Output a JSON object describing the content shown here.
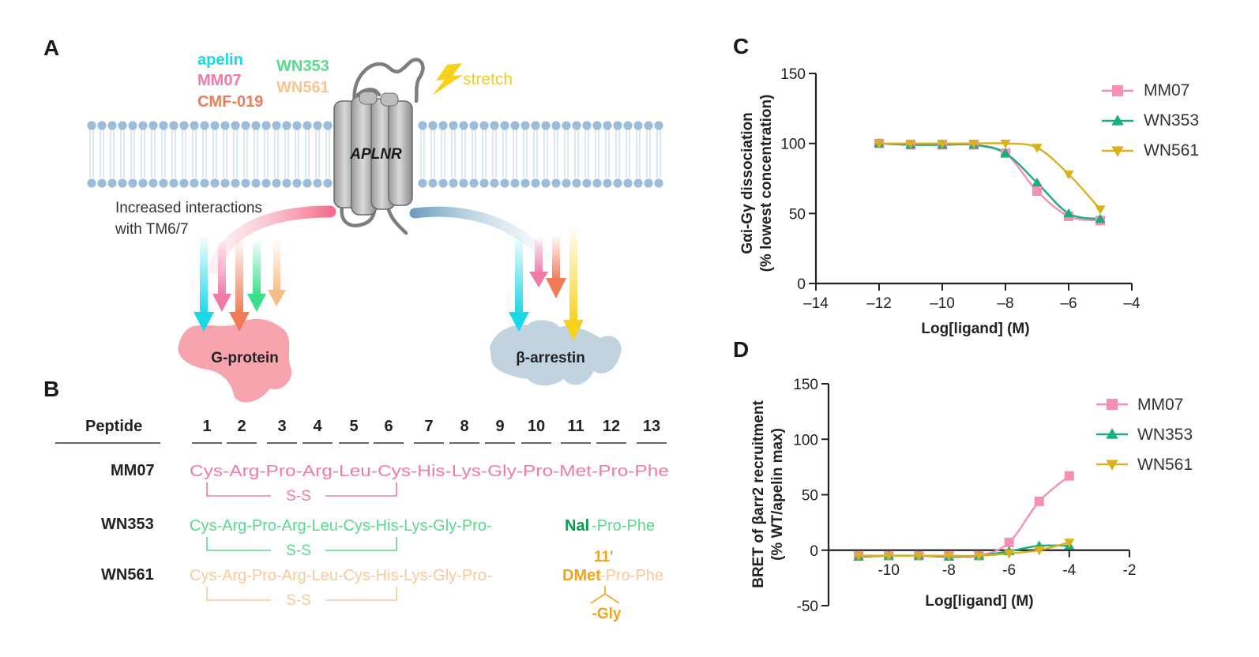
{
  "panels": {
    "A": "A",
    "B": "B",
    "C": "C",
    "D": "D"
  },
  "colors": {
    "apelin": "#19d8e8",
    "MM07": "#f07aa8",
    "CMF019": "#f07b55",
    "WN353": "#4fdc96",
    "WN561": "#f9c99a",
    "stretch": "#f7d21c",
    "accent_dark_green": "#0a9a55",
    "accent_orange": "#f2a31c"
  },
  "panelA": {
    "ligands_left": [
      "apelin",
      "MM07",
      "CMF-019"
    ],
    "ligands_right": [
      "WN353",
      "WN561"
    ],
    "stretch": "stretch",
    "receptor": "APLNR",
    "note_line1": "Increased interactions",
    "note_line2": "with TM6/7",
    "gprotein": "G-protein",
    "barrestin": "β-arrestin"
  },
  "panelB": {
    "header": "Peptide",
    "positions": [
      "1",
      "2",
      "3",
      "4",
      "5",
      "6",
      "7",
      "8",
      "9",
      "10",
      "11",
      "12",
      "13"
    ],
    "disulfide": "S-S",
    "rows": [
      {
        "name": "MM07",
        "seq_a": "Cys-Arg-Pro-Arg-Leu-Cys-His-Lys-Gly-Pro-Met-Pro-Phe",
        "seq_b": "",
        "seq_c": ""
      },
      {
        "name": "WN353",
        "seq_a": "Cys-Arg-Pro-Arg-Leu-Cys-His-Lys-Gly-Pro-",
        "seq_b": "Nal",
        "seq_c": "-Pro-Phe"
      },
      {
        "name": "WN561",
        "seq_a": "Cys-Arg-Pro-Arg-Leu-Cys-His-Lys-Gly-Pro-",
        "seq_b": "DMet",
        "seq_c": "-Pro-Phe"
      }
    ],
    "wn561_mod_top": "11'",
    "wn561_mod_bottom": "-Gly"
  },
  "chart_data": [
    {
      "type": "line",
      "ylabel_line1": "Gαi-Gγ dissociation",
      "ylabel_line2": "(% lowest concentration)",
      "xlabel": "Log[ligand] (M)",
      "xlim": [
        -14,
        -4
      ],
      "ylim": [
        0,
        150
      ],
      "xticks": [
        -14,
        -12,
        -10,
        -8,
        -6,
        -4
      ],
      "xtick_labels": [
        "–14",
        "–12",
        "–10",
        "–8",
        "–6",
        "–4"
      ],
      "yticks": [
        0,
        50,
        100,
        150
      ],
      "legend": "top-right",
      "series": [
        {
          "name": "MM07",
          "marker": "square",
          "color": "#f48fb5",
          "x": [
            -12,
            -11,
            -10,
            -9,
            -8,
            -7,
            -6,
            -5
          ],
          "y": [
            100,
            99,
            99,
            99,
            93,
            66,
            48,
            45
          ]
        },
        {
          "name": "WN353",
          "marker": "triangle-up",
          "color": "#17b07a",
          "x": [
            -12,
            -11,
            -10,
            -9,
            -8,
            -7,
            -6,
            -5
          ],
          "y": [
            100,
            99,
            99,
            99,
            93,
            72,
            50,
            46
          ]
        },
        {
          "name": "WN561",
          "marker": "triangle-down",
          "color": "#d8b21c",
          "x": [
            -12,
            -11,
            -10,
            -9,
            -8,
            -7,
            -6,
            -5
          ],
          "y": [
            100,
            100,
            100,
            100,
            100,
            97,
            78,
            53
          ]
        }
      ]
    },
    {
      "type": "line",
      "ylabel_line1": "BRET of βarr2 recruitment",
      "ylabel_line2": "(% WT/apelin max)",
      "xlabel": "Log[ligand] (M)",
      "xlim": [
        -12,
        -2
      ],
      "ylim": [
        -50,
        150
      ],
      "xticks": [
        -10,
        -8,
        -6,
        -4,
        -2
      ],
      "xtick_labels": [
        "-10",
        "-8",
        "-6",
        "-4",
        "-2"
      ],
      "yticks": [
        -50,
        0,
        50,
        100,
        150
      ],
      "legend": "top-right",
      "series": [
        {
          "name": "MM07",
          "marker": "square",
          "color": "#f48fb5",
          "x": [
            -11,
            -10,
            -9,
            -8,
            -7,
            -6,
            -5,
            -4
          ],
          "y": [
            -5,
            -5,
            -5,
            -5,
            -5,
            7,
            44,
            67
          ]
        },
        {
          "name": "WN353",
          "marker": "triangle-up",
          "color": "#17b07a",
          "x": [
            -11,
            -10,
            -9,
            -8,
            -7,
            -6,
            -5,
            -4
          ],
          "y": [
            -6,
            -5,
            -5,
            -6,
            -5,
            -1,
            4,
            4
          ]
        },
        {
          "name": "WN561",
          "marker": "triangle-down",
          "color": "#d8b21c",
          "x": [
            -11,
            -10,
            -9,
            -8,
            -7,
            -6,
            -5,
            -4
          ],
          "y": [
            -5,
            -5,
            -5,
            -5,
            -5,
            -3,
            0,
            7
          ]
        }
      ]
    }
  ]
}
